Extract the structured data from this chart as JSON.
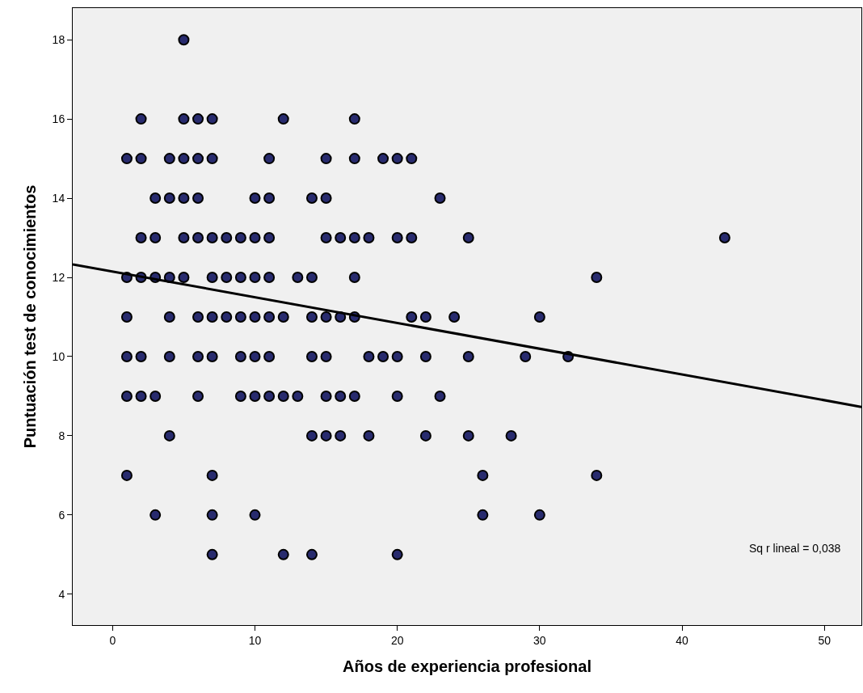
{
  "chart_data": {
    "type": "scatter",
    "xlabel": "Años de experiencia profesional",
    "ylabel": "Puntuación test de conocimientos",
    "xlim": [
      -2.8,
      52.6
    ],
    "ylim": [
      3.22,
      18.8
    ],
    "xticks": [
      0,
      10,
      20,
      30,
      40,
      50
    ],
    "yticks": [
      4,
      6,
      8,
      10,
      12,
      14,
      16,
      18
    ],
    "grid": false,
    "series": [
      {
        "type": "scatter",
        "marker": "circle",
        "color": "#282b6e",
        "x": [
          5,
          2,
          5,
          6,
          7,
          12,
          17,
          1,
          2,
          4,
          5,
          6,
          7,
          11,
          15,
          17,
          19,
          20,
          21,
          3,
          4,
          5,
          6,
          10,
          11,
          14,
          15,
          23,
          2,
          3,
          5,
          6,
          7,
          8,
          9,
          10,
          11,
          15,
          16,
          17,
          18,
          20,
          21,
          25,
          43,
          1,
          2,
          3,
          4,
          5,
          7,
          8,
          9,
          10,
          11,
          13,
          14,
          17,
          34,
          1,
          4,
          6,
          7,
          8,
          9,
          10,
          11,
          12,
          14,
          15,
          16,
          17,
          21,
          22,
          24,
          30,
          1,
          2,
          4,
          6,
          7,
          9,
          10,
          11,
          14,
          15,
          18,
          19,
          20,
          22,
          25,
          29,
          32,
          1,
          2,
          3,
          6,
          9,
          10,
          11,
          12,
          13,
          15,
          16,
          17,
          20,
          23,
          4,
          14,
          15,
          16,
          18,
          22,
          25,
          28,
          1,
          7,
          26,
          34,
          3,
          7,
          10,
          26,
          30,
          7,
          12,
          14,
          20
        ],
        "values": [
          18,
          16,
          16,
          16,
          16,
          16,
          16,
          15,
          15,
          15,
          15,
          15,
          15,
          15,
          15,
          15,
          15,
          15,
          15,
          14,
          14,
          14,
          14,
          14,
          14,
          14,
          14,
          14,
          13,
          13,
          13,
          13,
          13,
          13,
          13,
          13,
          13,
          13,
          13,
          13,
          13,
          13,
          13,
          13,
          13,
          12,
          12,
          12,
          12,
          12,
          12,
          12,
          12,
          12,
          12,
          12,
          12,
          12,
          12,
          11,
          11,
          11,
          11,
          11,
          11,
          11,
          11,
          11,
          11,
          11,
          11,
          11,
          11,
          11,
          11,
          11,
          10,
          10,
          10,
          10,
          10,
          10,
          10,
          10,
          10,
          10,
          10,
          10,
          10,
          10,
          10,
          10,
          10,
          9,
          9,
          9,
          9,
          9,
          9,
          9,
          9,
          9,
          9,
          9,
          9,
          9,
          9,
          8,
          8,
          8,
          8,
          8,
          8,
          8,
          8,
          7,
          7,
          7,
          7,
          6,
          6,
          6,
          6,
          6,
          5,
          5,
          5,
          5
        ]
      },
      {
        "type": "line",
        "color": "#000000",
        "x": [
          -2.8,
          52.6
        ],
        "values": [
          12.33,
          8.73
        ],
        "line_style": "solid",
        "marker": "none"
      }
    ],
    "annotations": [
      "Sq r lineal = 0,038"
    ]
  }
}
